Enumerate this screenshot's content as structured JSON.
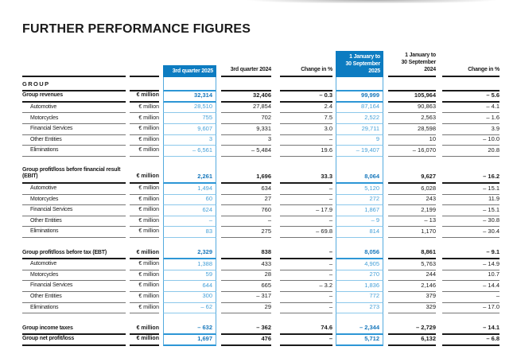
{
  "page": {
    "title": "FURTHER PERFORMANCE FIGURES"
  },
  "colors": {
    "blue_box": "#0d7cc1",
    "bold_blue": "#1878bc",
    "light_blue": "#45a0d8",
    "rule_dark": "#1a1a1a",
    "rule_gray": "#767676",
    "rule_blue_bold": "#2d96d5",
    "rule_blue_light": "#8cc8ea",
    "vert_blue": "#55abdf",
    "text_dark": "#1a1a1a"
  },
  "table": {
    "section_label": "GROUP",
    "columns": [
      {
        "key": "label",
        "header": ""
      },
      {
        "key": "unit",
        "header": ""
      },
      {
        "key": "q3_2025",
        "header": "3rd quarter 2025",
        "highlight": true
      },
      {
        "key": "q3_2024",
        "header": "3rd quarter 2024"
      },
      {
        "key": "chg_q",
        "header": "Change in %"
      },
      {
        "key": "ytd_2025",
        "header": "1 January to\n30 September 2025",
        "highlight": true
      },
      {
        "key": "ytd_2024",
        "header": "1 January to\n30 September 2024"
      },
      {
        "key": "chg_y",
        "header": "Change in %"
      }
    ],
    "rows": [
      {
        "label": "Group revenues",
        "unit": "€ million",
        "style": "bold",
        "values": [
          "32,314",
          "32,406",
          "– 0.3",
          "99,999",
          "105,964",
          "– 5.6"
        ]
      },
      {
        "label": "Automotive",
        "unit": "€ million",
        "style": "sub",
        "indent": true,
        "values": [
          "28,510",
          "27,854",
          "2.4",
          "87,164",
          "90,863",
          "– 4.1"
        ]
      },
      {
        "label": "Motorcycles",
        "unit": "€ million",
        "style": "sub",
        "indent": true,
        "values": [
          "755",
          "702",
          "7.5",
          "2,522",
          "2,563",
          "– 1.6"
        ]
      },
      {
        "label": "Financial Services",
        "unit": "€ million",
        "style": "sub",
        "indent": true,
        "values": [
          "9,607",
          "9,331",
          "3.0",
          "29,711",
          "28,598",
          "3.9"
        ]
      },
      {
        "label": "Other Entities",
        "unit": "€ million",
        "style": "sub",
        "indent": true,
        "values": [
          "3",
          "3",
          "–",
          "9",
          "10",
          "– 10.0"
        ]
      },
      {
        "label": "Eliminations",
        "unit": "€ million",
        "style": "sub",
        "indent": true,
        "values": [
          "– 6,561",
          "– 5,484",
          "19.6",
          "– 19,407",
          "– 16,070",
          "20.8"
        ]
      },
      {
        "gap": true
      },
      {
        "label": "Group profit/loss before financial result (EBIT)",
        "unit": "€ million",
        "style": "bold",
        "values": [
          "2,261",
          "1,696",
          "33.3",
          "8,064",
          "9,627",
          "– 16.2"
        ]
      },
      {
        "label": "Automotive",
        "unit": "€ million",
        "style": "sub",
        "indent": true,
        "values": [
          "1,494",
          "634",
          "–",
          "5,120",
          "6,028",
          "– 15.1"
        ]
      },
      {
        "label": "Motorcycles",
        "unit": "€ million",
        "style": "sub",
        "indent": true,
        "values": [
          "60",
          "27",
          "–",
          "272",
          "243",
          "11.9"
        ]
      },
      {
        "label": "Financial Services",
        "unit": "€ million",
        "style": "sub",
        "indent": true,
        "values": [
          "624",
          "760",
          "– 17.9",
          "1,867",
          "2,199",
          "– 15.1"
        ]
      },
      {
        "label": "Other Entities",
        "unit": "€ million",
        "style": "sub",
        "indent": true,
        "values": [
          "–",
          "–",
          "–",
          "– 9",
          "– 13",
          "– 30.8"
        ]
      },
      {
        "label": "Eliminations",
        "unit": "€ million",
        "style": "sub",
        "indent": true,
        "values": [
          "83",
          "275",
          "– 69.8",
          "814",
          "1,170",
          "– 30.4"
        ]
      },
      {
        "gap": true
      },
      {
        "label": "Group profit/loss before tax (EBT)",
        "unit": "€ million",
        "style": "bold",
        "values": [
          "2,329",
          "838",
          "–",
          "8,056",
          "8,861",
          "– 9.1"
        ]
      },
      {
        "label": "Automotive",
        "unit": "€ million",
        "style": "sub",
        "indent": true,
        "values": [
          "1,388",
          "433",
          "–",
          "4,905",
          "5,763",
          "– 14.9"
        ]
      },
      {
        "label": "Motorcycles",
        "unit": "€ million",
        "style": "sub",
        "indent": true,
        "values": [
          "59",
          "28",
          "–",
          "270",
          "244",
          "10.7"
        ]
      },
      {
        "label": "Financial Services",
        "unit": "€ million",
        "style": "sub",
        "indent": true,
        "values": [
          "644",
          "665",
          "– 3.2",
          "1,836",
          "2,146",
          "– 14.4"
        ]
      },
      {
        "label": "Other Entities",
        "unit": "€ million",
        "style": "sub",
        "indent": true,
        "values": [
          "300",
          "– 317",
          "–",
          "772",
          "379",
          "–"
        ]
      },
      {
        "label": "Eliminations",
        "unit": "€ million",
        "style": "sub",
        "indent": true,
        "values": [
          "– 62",
          "29",
          "–",
          "273",
          "329",
          "– 17.0"
        ]
      },
      {
        "gap": true
      },
      {
        "label": "Group income taxes",
        "unit": "€ million",
        "style": "bold",
        "values": [
          "– 632",
          "– 362",
          "74.6",
          "– 2,344",
          "– 2,729",
          "– 14.1"
        ]
      },
      {
        "label": "Group net profit/loss",
        "unit": "€ million",
        "style": "bold",
        "values": [
          "1,697",
          "476",
          "–",
          "5,712",
          "6,132",
          "– 6.8"
        ]
      }
    ]
  }
}
